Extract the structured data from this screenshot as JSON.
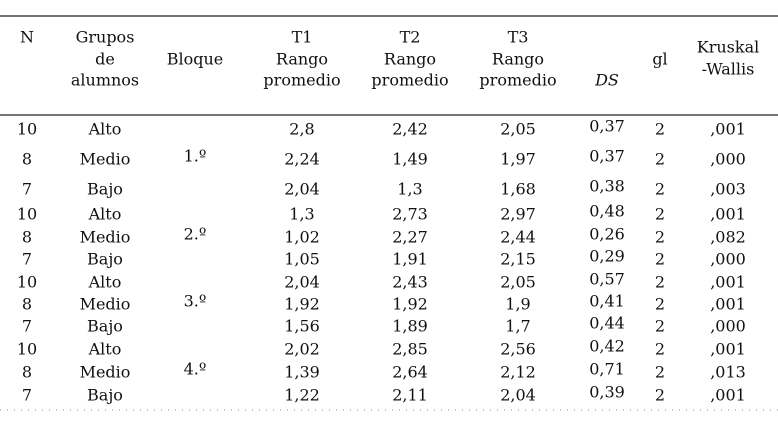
{
  "table": {
    "headers": [
      [
        "N"
      ],
      [
        "Grupos",
        "de",
        "alumnos"
      ],
      [
        "Bloque"
      ],
      [
        "T1",
        "Rango",
        "promedio"
      ],
      [
        "T2",
        "Rango",
        "promedio"
      ],
      [
        "T3",
        "Rango",
        "promedio"
      ],
      [
        "DS"
      ],
      [
        "gl"
      ],
      [
        "Kruskal",
        "-Wallis"
      ]
    ],
    "blocks": [
      {
        "label": "1.º",
        "rows": [
          [
            "10",
            "Alto",
            "2,8",
            "2,42",
            "2,05",
            "0,37",
            "2",
            ",001"
          ],
          [
            "8",
            "Medio",
            "2,24",
            "1,49",
            "1,97",
            "0,37",
            "2",
            ",000"
          ],
          [
            "7",
            "Bajo",
            "2,04",
            "1,3",
            "1,68",
            "0,38",
            "2",
            ",003"
          ]
        ]
      },
      {
        "label": "2.º",
        "rows": [
          [
            "10",
            "Alto",
            "1,3",
            "2,73",
            "2,97",
            "0,48",
            "2",
            ",001"
          ],
          [
            "8",
            "Medio",
            "1,02",
            "2,27",
            "2,44",
            "0,26",
            "2",
            ",082"
          ],
          [
            "7",
            "Bajo",
            "1,05",
            "1,91",
            "2,15",
            "0,29",
            "2",
            ",000"
          ]
        ]
      },
      {
        "label": "3.º",
        "rows": [
          [
            "10",
            "Alto",
            "2,04",
            "2,43",
            "2,05",
            "0,57",
            "2",
            ",001"
          ],
          [
            "8",
            "Medio",
            "1,92",
            "1,92",
            "1,9",
            "0,41",
            "2",
            ",001"
          ],
          [
            "7",
            "Bajo",
            "1,56",
            "1,89",
            "1,7",
            "0,44",
            "2",
            ",000"
          ]
        ]
      },
      {
        "label": "4.º",
        "rows": [
          [
            "10",
            "Alto",
            "2,02",
            "2,85",
            "2,56",
            "0,42",
            "2",
            ",001"
          ],
          [
            "8",
            "Medio",
            "1,39",
            "2,64",
            "2,12",
            "0,71",
            "2",
            ",013"
          ],
          [
            "7",
            "Bajo",
            "1,22",
            "2,11",
            "2,04",
            "0,39",
            "2",
            ",001"
          ]
        ]
      }
    ]
  }
}
